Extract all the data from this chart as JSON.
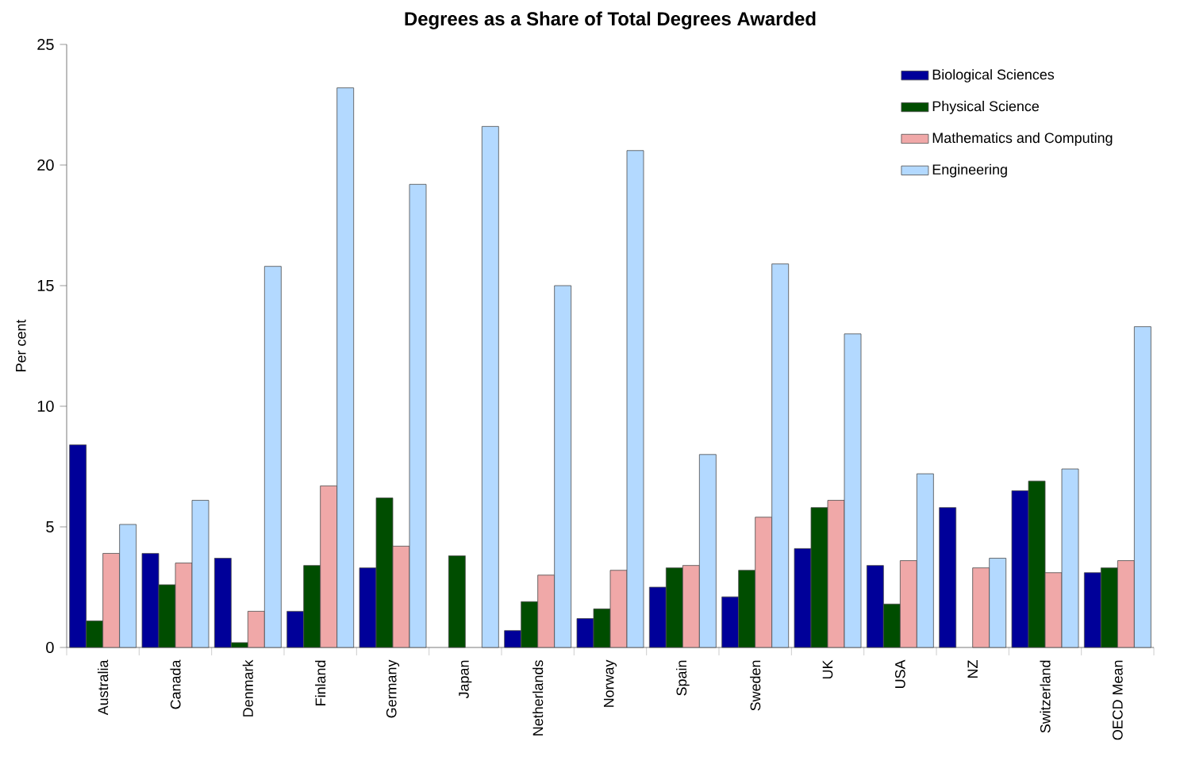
{
  "chart_data": {
    "type": "bar",
    "title": "Degrees as a Share of Total Degrees Awarded",
    "ylabel": "Per cent",
    "categories": [
      "Australia",
      "Canada",
      "Denmark",
      "Finland",
      "Germany",
      "Japan",
      "Netherlands",
      "Norway",
      "Spain",
      "Sweden",
      "UK",
      "USA",
      "NZ",
      "Switzerland",
      "OECD Mean"
    ],
    "series": [
      {
        "name": "Biological Sciences",
        "color": "#000099",
        "values": [
          8.4,
          3.9,
          3.7,
          1.5,
          3.3,
          null,
          0.7,
          1.2,
          2.5,
          2.1,
          4.1,
          3.4,
          5.8,
          6.5,
          3.1
        ]
      },
      {
        "name": "Physical Science",
        "color": "#004d00",
        "values": [
          1.1,
          2.6,
          0.2,
          3.4,
          6.2,
          3.8,
          1.9,
          1.6,
          3.3,
          3.2,
          5.8,
          1.8,
          null,
          6.9,
          3.3
        ]
      },
      {
        "name": "Mathematics and Computing",
        "color": "#f0a8a8",
        "values": [
          3.9,
          3.5,
          1.5,
          6.7,
          4.2,
          null,
          3.0,
          3.2,
          3.4,
          5.4,
          6.1,
          3.6,
          3.3,
          3.1,
          3.6
        ]
      },
      {
        "name": "Engineering",
        "color": "#b3d9ff",
        "values": [
          5.1,
          6.1,
          15.8,
          23.2,
          19.2,
          21.6,
          15.0,
          20.6,
          8.0,
          15.9,
          13.0,
          7.2,
          3.7,
          7.4,
          13.3
        ]
      }
    ],
    "ylim": [
      0,
      25
    ],
    "yticks": [
      0,
      5,
      10,
      15,
      20,
      25
    ],
    "grid": false,
    "legend": "top right"
  }
}
